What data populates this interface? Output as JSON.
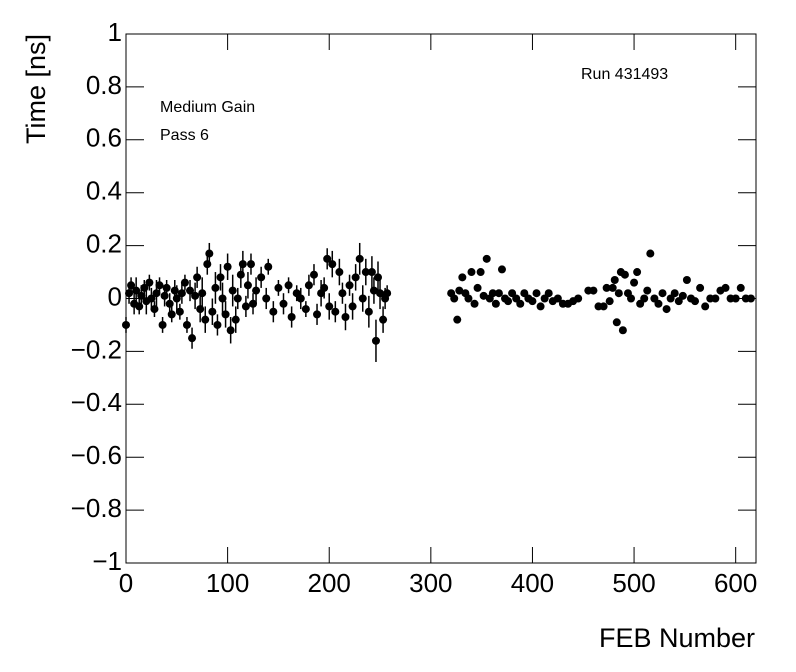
{
  "chart_data": {
    "type": "scatter",
    "x_label": "FEB Number",
    "y_label": "Time [ns]",
    "annotations": [
      "Run 431493",
      "Medium Gain",
      "Pass 6"
    ],
    "xlim": [
      0,
      620
    ],
    "xticks": [
      0,
      100,
      200,
      300,
      400,
      500,
      600
    ],
    "ylim": [
      -1,
      1
    ],
    "yticks": [
      {
        "value": -1,
        "label": "−1"
      },
      {
        "value": -0.8,
        "label": "−0.8"
      },
      {
        "value": -0.6,
        "label": "−0.6"
      },
      {
        "value": -0.4,
        "label": "−0.4"
      },
      {
        "value": -0.2,
        "label": "−0.2"
      },
      0,
      0.2,
      0.4,
      0.6,
      0.8,
      1
    ],
    "color": "#000000",
    "x": [
      0,
      3,
      5,
      8,
      10,
      13,
      15,
      18,
      20,
      23,
      25,
      28,
      30,
      33,
      36,
      38,
      40,
      43,
      45,
      48,
      50,
      53,
      55,
      58,
      60,
      63,
      65,
      68,
      70,
      73,
      75,
      78,
      80,
      82,
      85,
      88,
      90,
      93,
      95,
      98,
      100,
      103,
      105,
      108,
      110,
      113,
      115,
      118,
      120,
      123,
      125,
      128,
      133,
      138,
      140,
      145,
      150,
      155,
      160,
      163,
      168,
      172,
      177,
      180,
      185,
      188,
      192,
      195,
      198,
      200,
      203,
      206,
      210,
      213,
      216,
      220,
      223,
      226,
      230,
      233,
      236,
      239,
      242,
      244,
      246,
      248,
      250,
      253,
      255,
      257,
      320,
      323,
      326,
      328,
      331,
      334,
      337,
      340,
      343,
      346,
      349,
      352,
      355,
      358,
      361,
      364,
      367,
      370,
      373,
      376,
      380,
      384,
      388,
      392,
      396,
      400,
      404,
      408,
      412,
      416,
      420,
      425,
      430,
      435,
      440,
      445,
      455,
      460,
      465,
      470,
      473,
      476,
      479,
      481,
      483,
      485,
      487,
      489,
      491,
      494,
      497,
      500,
      503,
      506,
      510,
      513,
      516,
      520,
      524,
      528,
      532,
      536,
      540,
      544,
      548,
      552,
      556,
      560,
      565,
      570,
      575,
      580,
      585,
      590,
      595,
      600,
      605,
      610,
      615
    ],
    "values": [
      -0.1,
      0.02,
      0.05,
      -0.02,
      0.03,
      -0.03,
      0.01,
      0.04,
      -0.01,
      0.06,
      0,
      -0.04,
      0.02,
      0.05,
      -0.1,
      0.01,
      0.04,
      -0.02,
      -0.06,
      0.03,
      0,
      -0.05,
      0.02,
      0.06,
      -0.1,
      0.03,
      -0.15,
      0.01,
      0.08,
      -0.04,
      0.02,
      -0.08,
      0.13,
      0.17,
      -0.05,
      0.04,
      -0.1,
      0.08,
      0,
      -0.06,
      0.12,
      -0.12,
      0.03,
      -0.08,
      0,
      0.09,
      0.13,
      -0.03,
      0.05,
      0.13,
      -0.02,
      0.03,
      0.08,
      0,
      0.12,
      -0.05,
      0.04,
      -0.02,
      0.05,
      -0.07,
      0.02,
      0,
      -0.04,
      0.05,
      0.09,
      -0.06,
      0.02,
      0.04,
      0.15,
      -0.03,
      0.13,
      -0.05,
      0.1,
      0.02,
      -0.07,
      0.05,
      -0.03,
      0.08,
      0.15,
      0,
      0.1,
      -0.05,
      0.1,
      0.03,
      -0.16,
      0.08,
      0.02,
      -0.08,
      0,
      0.02,
      0.02,
      0,
      -0.08,
      0.03,
      0.08,
      0.02,
      0,
      0.1,
      -0.02,
      0.04,
      0.1,
      0.01,
      0.15,
      0,
      0.02,
      -0.02,
      0.02,
      0.11,
      0,
      -0.01,
      0.02,
      0,
      -0.02,
      0.02,
      0,
      -0.01,
      0.02,
      -0.03,
      0,
      0.02,
      -0.01,
      0,
      -0.02,
      -0.02,
      -0.01,
      0,
      0.03,
      0.03,
      -0.03,
      -0.03,
      0.04,
      -0.01,
      0.04,
      0.07,
      -0.09,
      0.02,
      0.1,
      -0.12,
      0.09,
      0.02,
      0,
      0.06,
      0.1,
      -0.02,
      0,
      0.03,
      0.17,
      0,
      -0.02,
      0.02,
      -0.04,
      0,
      0.02,
      -0.01,
      0.01,
      0.07,
      0,
      -0.01,
      0.04,
      -0.03,
      0,
      0,
      0.03,
      0.04,
      0,
      0,
      0.04,
      0,
      0
    ],
    "errors": [
      0.03,
      0.04,
      0.03,
      0.04,
      0.05,
      0.03,
      0.04,
      0.03,
      0.05,
      0.03,
      0.04,
      0.03,
      0.05,
      0.03,
      0.03,
      0.04,
      0.03,
      0.04,
      0.03,
      0.04,
      0.05,
      0.03,
      0.04,
      0.03,
      0.03,
      0.04,
      0.04,
      0.05,
      0.04,
      0.05,
      0.06,
      0.05,
      0.04,
      0.04,
      0.05,
      0.06,
      0.04,
      0.05,
      0.06,
      0.05,
      0.05,
      0.05,
      0.06,
      0.05,
      0.04,
      0.05,
      0.05,
      0.04,
      0.05,
      0.04,
      0.04,
      0.05,
      0.04,
      0.04,
      0.03,
      0.04,
      0.03,
      0.04,
      0.03,
      0.04,
      0.03,
      0.04,
      0.03,
      0.04,
      0.04,
      0.04,
      0.05,
      0.04,
      0.04,
      0.05,
      0.05,
      0.04,
      0.05,
      0.04,
      0.05,
      0.04,
      0.05,
      0.05,
      0.06,
      0.05,
      0.05,
      0.06,
      0.06,
      0.05,
      0.08,
      0.06,
      0.06,
      0.05,
      0.04,
      0.03,
      0.01,
      0.01,
      0.01,
      0.01,
      0.01,
      0.01,
      0.01,
      0.01,
      0.01,
      0.01,
      0.01,
      0.01,
      0.01,
      0.01,
      0.01,
      0.01,
      0.01,
      0.01,
      0.01,
      0.01,
      0.01,
      0.01,
      0.01,
      0.01,
      0.01,
      0.01,
      0.01,
      0.01,
      0.01,
      0.01,
      0.01,
      0.01,
      0.01,
      0.01,
      0.01,
      0.01,
      0.01,
      0.01,
      0.01,
      0.01,
      0.01,
      0.01,
      0.01,
      0.01,
      0.01,
      0.01,
      0.01,
      0.01,
      0.01,
      0.01,
      0.01,
      0.01,
      0.01,
      0.01,
      0.01,
      0.01,
      0.01,
      0.01,
      0.01,
      0.01,
      0.01,
      0.01,
      0.01,
      0.01,
      0.01,
      0.01,
      0.01,
      0.01,
      0.01,
      0.01,
      0.01,
      0.01,
      0.01,
      0.01,
      0.01,
      0.01,
      0.01,
      0.01,
      0.01
    ]
  }
}
